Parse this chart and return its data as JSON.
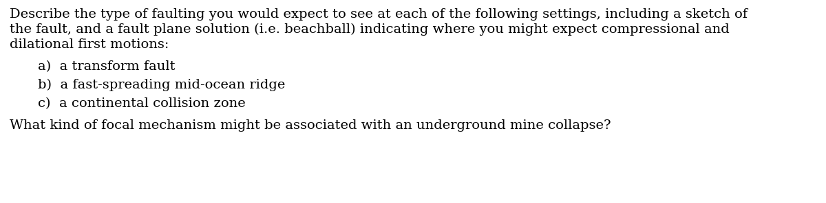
{
  "background_color": "#ffffff",
  "text_color": "#000000",
  "line1": "Describe the type of faulting you would expect to see at each of the following settings, including a sketch of",
  "line2": "the fault, and a fault plane solution (i.e. beachball) indicating where you might expect compressional and",
  "line3": "dilational first motions:",
  "item_a": "a)  a transform fault",
  "item_b": "b)  a fast-spreading mid-ocean ridge",
  "item_c": "c)  a continental collision zone",
  "final_line": "What kind of focal mechanism might be associated with an underground mine collapse?",
  "font_size": 14.0,
  "fig_width": 12.0,
  "fig_height": 2.96,
  "dpi": 100
}
